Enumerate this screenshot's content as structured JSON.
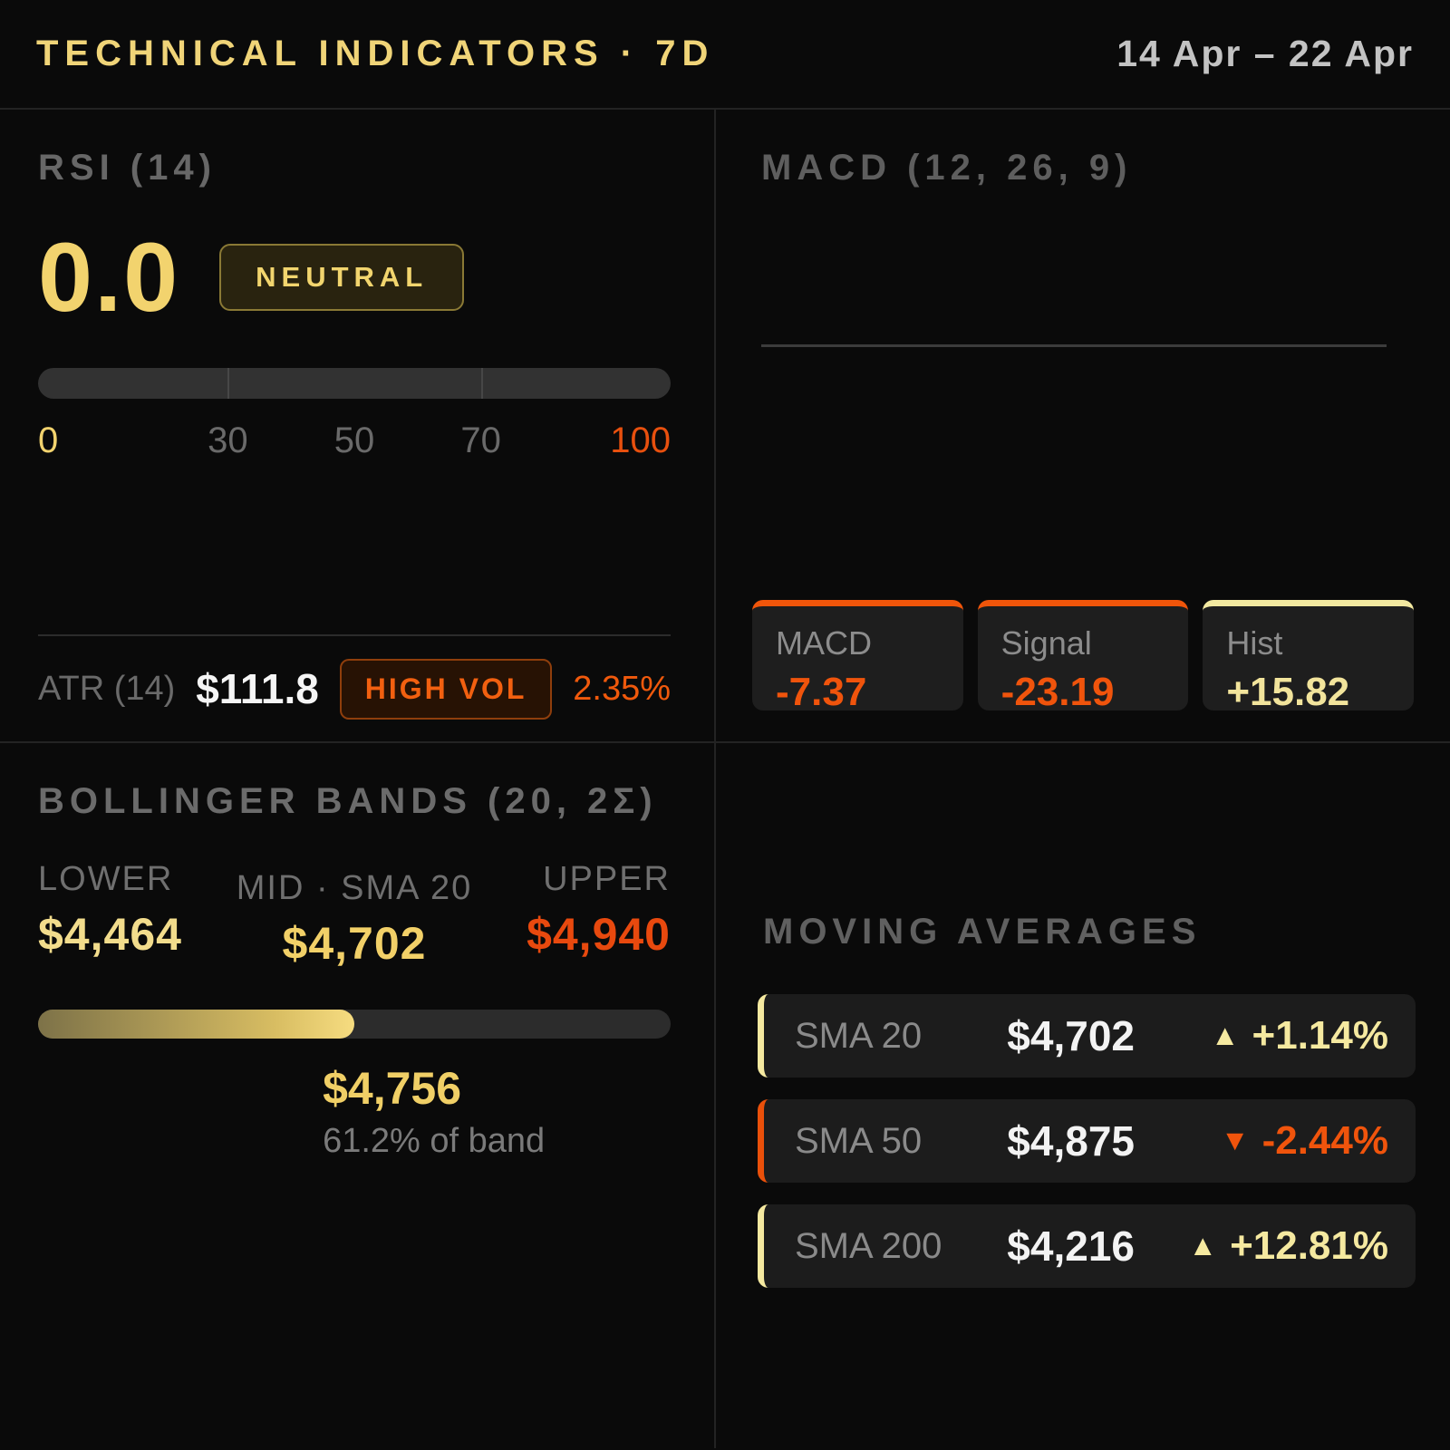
{
  "header": {
    "title": "TECHNICAL INDICATORS · 7D",
    "date_range": "14 Apr – 22 Apr"
  },
  "rsi": {
    "title": "RSI (14)",
    "value": "0.0",
    "status_badge": "NEUTRAL",
    "gauge": {
      "fill_percent": 0,
      "ticks": {
        "t0": "0",
        "t30": "30",
        "t50": "50",
        "t70": "70",
        "t100": "100"
      }
    }
  },
  "atr": {
    "label": "ATR (14)",
    "value": "$111.8",
    "badge": "HIGH VOL",
    "percent": "2.35%"
  },
  "macd": {
    "title": "MACD (12, 26, 9)",
    "cards": [
      {
        "label": "MACD",
        "value": "-7.37",
        "tone": "down"
      },
      {
        "label": "Signal",
        "value": "-23.19",
        "tone": "down"
      },
      {
        "label": "Hist",
        "value": "+15.82",
        "tone": "up"
      }
    ]
  },
  "bollinger": {
    "title": "BOLLINGER BANDS (20, 2Σ)",
    "lower_label": "LOWER",
    "lower_value": "$4,464",
    "mid_label": "MID · SMA 20",
    "mid_value": "$4,702",
    "upper_label": "UPPER",
    "upper_value": "$4,940",
    "fill_percent": 50,
    "current_price": "$4,756",
    "band_position": "61.2% of band"
  },
  "moving_averages": {
    "title": "MOVING AVERAGES",
    "rows": [
      {
        "label": "SMA 20",
        "value": "$4,702",
        "arrow": "▲",
        "change": "+1.14%",
        "tone": "up"
      },
      {
        "label": "SMA 50",
        "value": "$4,875",
        "arrow": "▼",
        "change": "-2.44%",
        "tone": "down"
      },
      {
        "label": "SMA 200",
        "value": "$4,216",
        "arrow": "▲",
        "change": "+12.81%",
        "tone": "up"
      }
    ]
  },
  "colors": {
    "gold": "#f2d36e",
    "pale_yellow": "#f5e9a0",
    "orange": "#f0540c",
    "background": "#0a0a0a",
    "card_background": "#1e1e1e"
  }
}
